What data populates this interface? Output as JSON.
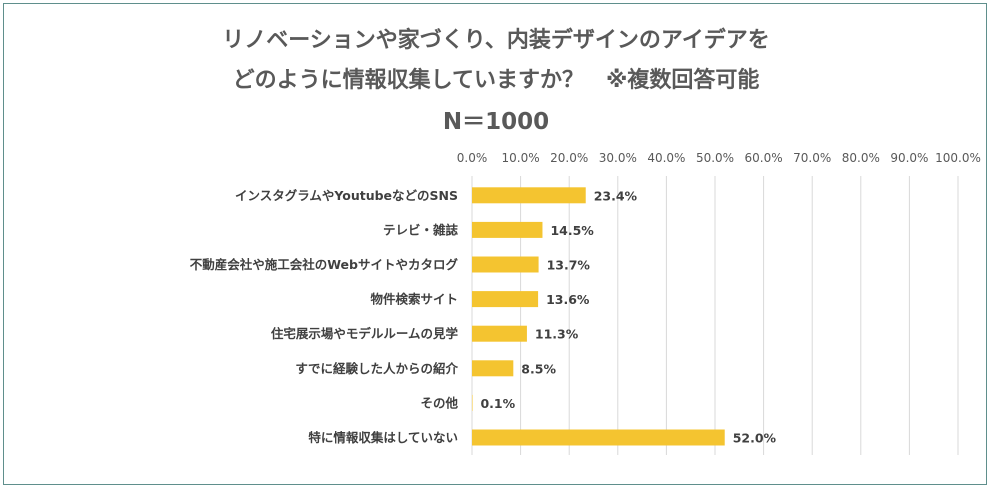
{
  "chart_data": {
    "type": "bar",
    "orientation": "horizontal",
    "title_lines": [
      "リノベーションや家づくり、内装デザインのアイデアを",
      "どのように情報収集していますか？　※複数回答可能",
      "N＝1000"
    ],
    "categories": [
      "インスタグラムやYoutubeなどのSNS",
      "テレビ・雑誌",
      "不動産会社や施工会社のWebサイトやカタログ",
      "物件検索サイト",
      "住宅展示場やモデルルームの見学",
      "すでに経験した人からの紹介",
      "その他",
      "特に情報収集はしていない"
    ],
    "values": [
      23.4,
      14.5,
      13.7,
      13.6,
      11.3,
      8.5,
      0.1,
      52.0
    ],
    "data_labels": [
      "23.4%",
      "14.5%",
      "13.7%",
      "13.6%",
      "11.3%",
      "8.5%",
      "0.1%",
      "52.0%"
    ],
    "x_ticks": [
      "0.0%",
      "10.0%",
      "20.0%",
      "30.0%",
      "40.0%",
      "50.0%",
      "60.0%",
      "70.0%",
      "80.0%",
      "90.0%",
      "100.0%"
    ],
    "xlim": [
      0,
      100
    ],
    "x_axis_position": "top",
    "grid": true,
    "legend": "none",
    "colors": {
      "bar": "#F4C430",
      "grid": "#d9d9d9",
      "frame": "#5f8f8c",
      "title": "#595959"
    }
  }
}
